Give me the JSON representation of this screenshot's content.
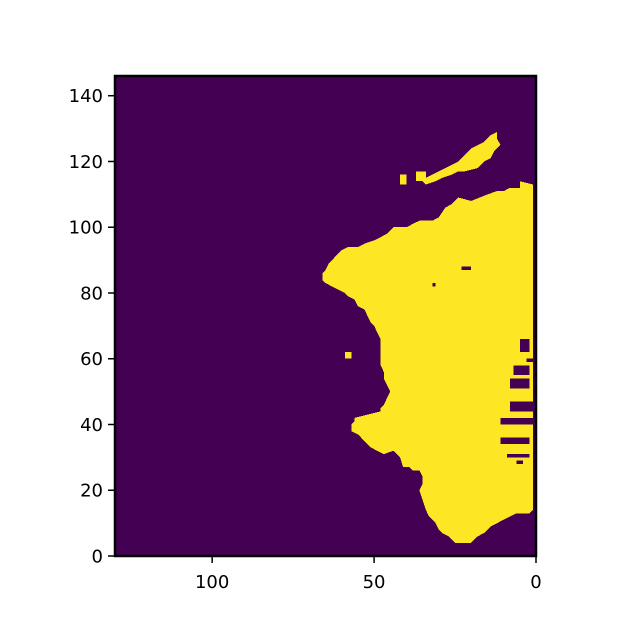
{
  "chart_data": {
    "type": "heatmap",
    "title": "",
    "xlabel": "",
    "ylabel": "",
    "xlim": [
      130,
      0
    ],
    "ylim": [
      0,
      146
    ],
    "x_inverted": true,
    "x_ticks": [
      100,
      50,
      0
    ],
    "x_tick_labels": [
      "100",
      "50",
      "0"
    ],
    "y_ticks": [
      0,
      20,
      40,
      60,
      80,
      100,
      120,
      140
    ],
    "y_tick_labels": [
      "0",
      "20",
      "40",
      "60",
      "80",
      "100",
      "120",
      "140"
    ],
    "colormap": "viridis",
    "values_present": [
      0,
      1
    ],
    "colors": {
      "0": "#440154",
      "1": "#fde725"
    },
    "grid": false,
    "land_outline": [
      [
        1,
        113
      ],
      [
        5,
        114
      ],
      [
        5,
        112
      ],
      [
        8,
        112
      ],
      [
        10,
        111
      ],
      [
        12,
        111
      ],
      [
        15,
        110
      ],
      [
        20,
        108
      ],
      [
        24,
        109
      ],
      [
        26,
        107
      ],
      [
        28,
        106
      ],
      [
        30,
        103
      ],
      [
        32,
        102
      ],
      [
        36,
        102
      ],
      [
        38,
        101
      ],
      [
        40,
        100
      ],
      [
        44,
        100
      ],
      [
        46,
        98
      ],
      [
        48,
        97
      ],
      [
        50,
        96
      ],
      [
        53,
        95
      ],
      [
        55,
        94
      ],
      [
        58,
        94
      ],
      [
        60,
        93
      ],
      [
        62,
        91
      ],
      [
        64,
        89
      ],
      [
        65,
        87
      ],
      [
        66,
        86
      ],
      [
        66,
        84
      ],
      [
        65,
        83
      ],
      [
        63,
        82
      ],
      [
        61,
        81
      ],
      [
        59,
        80
      ],
      [
        58,
        79
      ],
      [
        56,
        78
      ],
      [
        55,
        76
      ],
      [
        53,
        75
      ],
      [
        52,
        73
      ],
      [
        51,
        71
      ],
      [
        50,
        70
      ],
      [
        49,
        68
      ],
      [
        48,
        66
      ],
      [
        48,
        62
      ],
      [
        48,
        58
      ],
      [
        47,
        56
      ],
      [
        47,
        54
      ],
      [
        46,
        52
      ],
      [
        45,
        50
      ],
      [
        46,
        48
      ],
      [
        47,
        46
      ],
      [
        48,
        45
      ],
      [
        48,
        44
      ],
      [
        56,
        42
      ],
      [
        56,
        41
      ],
      [
        57,
        40
      ],
      [
        57,
        38
      ],
      [
        55,
        37
      ],
      [
        54,
        36
      ],
      [
        51,
        33
      ],
      [
        47,
        31
      ],
      [
        44,
        32
      ],
      [
        42,
        30
      ],
      [
        41,
        27
      ],
      [
        39,
        27
      ],
      [
        38,
        26
      ],
      [
        36,
        26
      ],
      [
        35,
        24
      ],
      [
        35,
        22
      ],
      [
        36,
        20
      ],
      [
        35,
        17
      ],
      [
        34,
        14
      ],
      [
        33,
        12
      ],
      [
        31,
        10
      ],
      [
        30,
        8
      ],
      [
        29,
        7
      ],
      [
        27,
        6
      ],
      [
        26,
        5
      ],
      [
        25,
        4
      ],
      [
        20,
        4
      ],
      [
        18,
        6
      ],
      [
        16,
        7
      ],
      [
        14,
        9
      ],
      [
        12,
        10
      ],
      [
        10,
        11
      ],
      [
        8,
        12
      ],
      [
        6,
        13
      ],
      [
        4,
        13
      ],
      [
        2,
        13
      ],
      [
        1,
        14
      ],
      [
        1,
        17
      ],
      [
        1,
        24
      ],
      [
        1,
        30
      ],
      [
        1,
        36
      ],
      [
        1,
        42
      ],
      [
        1,
        48
      ],
      [
        1,
        54
      ],
      [
        1,
        60
      ],
      [
        1,
        66
      ],
      [
        1,
        72
      ],
      [
        1,
        80
      ],
      [
        1,
        90
      ],
      [
        1,
        100
      ],
      [
        1,
        108
      ]
    ],
    "island_outline": [
      [
        11,
        125
      ],
      [
        12,
        127
      ],
      [
        12,
        129
      ],
      [
        14,
        128
      ],
      [
        16,
        126
      ],
      [
        20,
        124
      ],
      [
        22,
        122
      ],
      [
        24,
        120
      ],
      [
        26,
        119
      ],
      [
        28,
        118
      ],
      [
        30,
        117
      ],
      [
        32,
        116
      ],
      [
        34,
        115
      ],
      [
        35,
        114
      ],
      [
        34,
        113
      ],
      [
        31,
        114
      ],
      [
        29,
        115
      ],
      [
        26,
        116
      ],
      [
        24,
        117
      ],
      [
        22,
        117
      ],
      [
        18,
        118
      ],
      [
        16,
        120
      ],
      [
        14,
        121
      ],
      [
        13,
        123
      ]
    ],
    "land_specks": [
      {
        "x": 40,
        "y": 113,
        "w": 2,
        "h": 3
      },
      {
        "x": 34,
        "y": 114,
        "w": 3,
        "h": 3
      },
      {
        "x": 57,
        "y": 60,
        "w": 2,
        "h": 2
      },
      {
        "x": 38,
        "y": 87,
        "w": 1,
        "h": 1
      }
    ],
    "water_channels": [
      {
        "x": 2,
        "y": 55,
        "w": 5,
        "h": 3
      },
      {
        "x": 2,
        "y": 51,
        "w": 6,
        "h": 3
      },
      {
        "x": 1,
        "y": 44,
        "w": 7,
        "h": 3
      },
      {
        "x": 1,
        "y": 40,
        "w": 10,
        "h": 2
      },
      {
        "x": 2,
        "y": 34,
        "w": 9,
        "h": 2
      },
      {
        "x": 2,
        "y": 30,
        "w": 7,
        "h": 1
      },
      {
        "x": 4,
        "y": 28,
        "w": 2,
        "h": 1
      },
      {
        "x": 2,
        "y": 62,
        "w": 3,
        "h": 4
      },
      {
        "x": 20,
        "y": 87,
        "w": 3,
        "h": 1
      },
      {
        "x": 31,
        "y": 82,
        "w": 1,
        "h": 1
      },
      {
        "x": 1,
        "y": 59,
        "w": 2,
        "h": 1
      }
    ]
  }
}
